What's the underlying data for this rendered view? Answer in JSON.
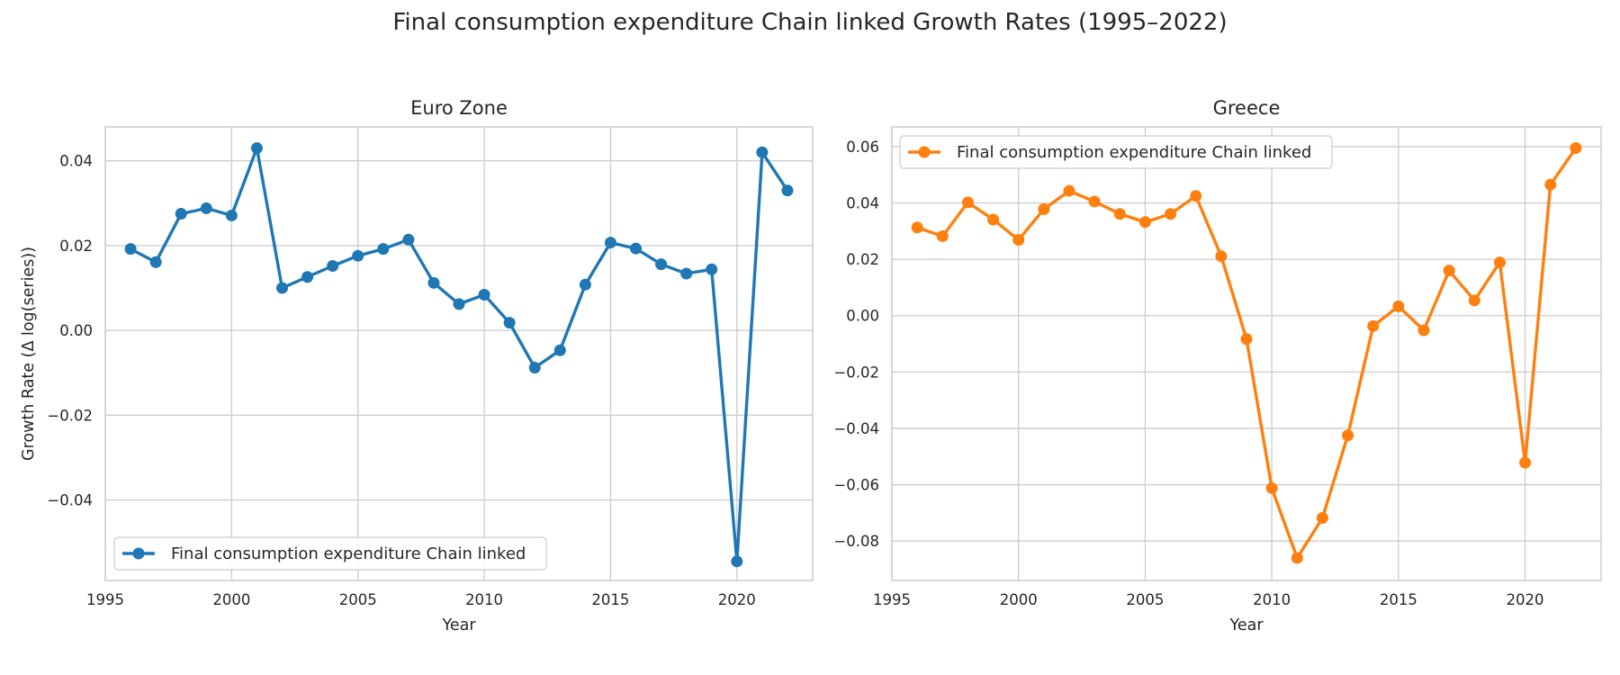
{
  "suptitle": "Final consumption expenditure Chain linked Growth Rates (1995–2022)",
  "chart_data": [
    {
      "type": "line",
      "title": "Euro Zone",
      "xlabel": "Year",
      "ylabel": "Growth Rate (Δ log(series))",
      "xlim": [
        1995,
        2023
      ],
      "ylim": [
        -0.059,
        0.048
      ],
      "xticks": [
        1995,
        2000,
        2005,
        2010,
        2015,
        2020
      ],
      "xtick_labels": [
        "1995",
        "2000",
        "2005",
        "2010",
        "2015",
        "2020"
      ],
      "yticks": [
        -0.04,
        -0.02,
        0.0,
        0.02,
        0.04
      ],
      "ytick_labels": [
        "−0.04",
        "−0.02",
        "0.00",
        "0.02",
        "0.04"
      ],
      "grid": true,
      "legend": "lower-left",
      "series": [
        {
          "name": "Final consumption expenditure Chain linked",
          "color": "#1f77b4",
          "marker": "circle",
          "x": [
            1996,
            1997,
            1998,
            1999,
            2000,
            2001,
            2002,
            2003,
            2004,
            2005,
            2006,
            2007,
            2008,
            2009,
            2010,
            2011,
            2012,
            2013,
            2014,
            2015,
            2016,
            2017,
            2018,
            2019,
            2020,
            2021,
            2022
          ],
          "y": [
            0.0192,
            0.0161,
            0.0275,
            0.0288,
            0.0271,
            0.043,
            0.01,
            0.0126,
            0.0152,
            0.0176,
            0.0192,
            0.0214,
            0.0112,
            0.0062,
            0.0084,
            0.0018,
            -0.0088,
            -0.0047,
            0.0108,
            0.0207,
            0.0193,
            0.0156,
            0.0134,
            0.0144,
            -0.0545,
            0.042,
            0.033
          ]
        }
      ]
    },
    {
      "type": "line",
      "title": "Greece",
      "xlabel": "Year",
      "ylabel": "",
      "xlim": [
        1995,
        2023
      ],
      "ylim": [
        -0.094,
        0.067
      ],
      "xticks": [
        1995,
        2000,
        2005,
        2010,
        2015,
        2020
      ],
      "xtick_labels": [
        "1995",
        "2000",
        "2005",
        "2010",
        "2015",
        "2020"
      ],
      "yticks": [
        -0.08,
        -0.06,
        -0.04,
        -0.02,
        0.0,
        0.02,
        0.04,
        0.06
      ],
      "ytick_labels": [
        "−0.08",
        "−0.06",
        "−0.04",
        "−0.02",
        "0.00",
        "0.02",
        "0.04",
        "0.06"
      ],
      "grid": true,
      "legend": "upper-left",
      "series": [
        {
          "name": "Final consumption expenditure Chain linked",
          "color": "#ff7f0e",
          "marker": "circle",
          "x": [
            1996,
            1997,
            1998,
            1999,
            2000,
            2001,
            2002,
            2003,
            2004,
            2005,
            2006,
            2007,
            2008,
            2009,
            2010,
            2011,
            2012,
            2013,
            2014,
            2015,
            2016,
            2017,
            2018,
            2019,
            2020,
            2021,
            2022
          ],
          "y": [
            0.0313,
            0.0282,
            0.0402,
            0.0341,
            0.0269,
            0.0378,
            0.0443,
            0.0405,
            0.0361,
            0.0332,
            0.0361,
            0.0425,
            0.0211,
            -0.0083,
            -0.0612,
            -0.086,
            -0.0718,
            -0.0425,
            -0.0037,
            0.0033,
            -0.0052,
            0.016,
            0.0054,
            0.0189,
            -0.0522,
            0.0465,
            0.0595
          ]
        }
      ]
    }
  ]
}
